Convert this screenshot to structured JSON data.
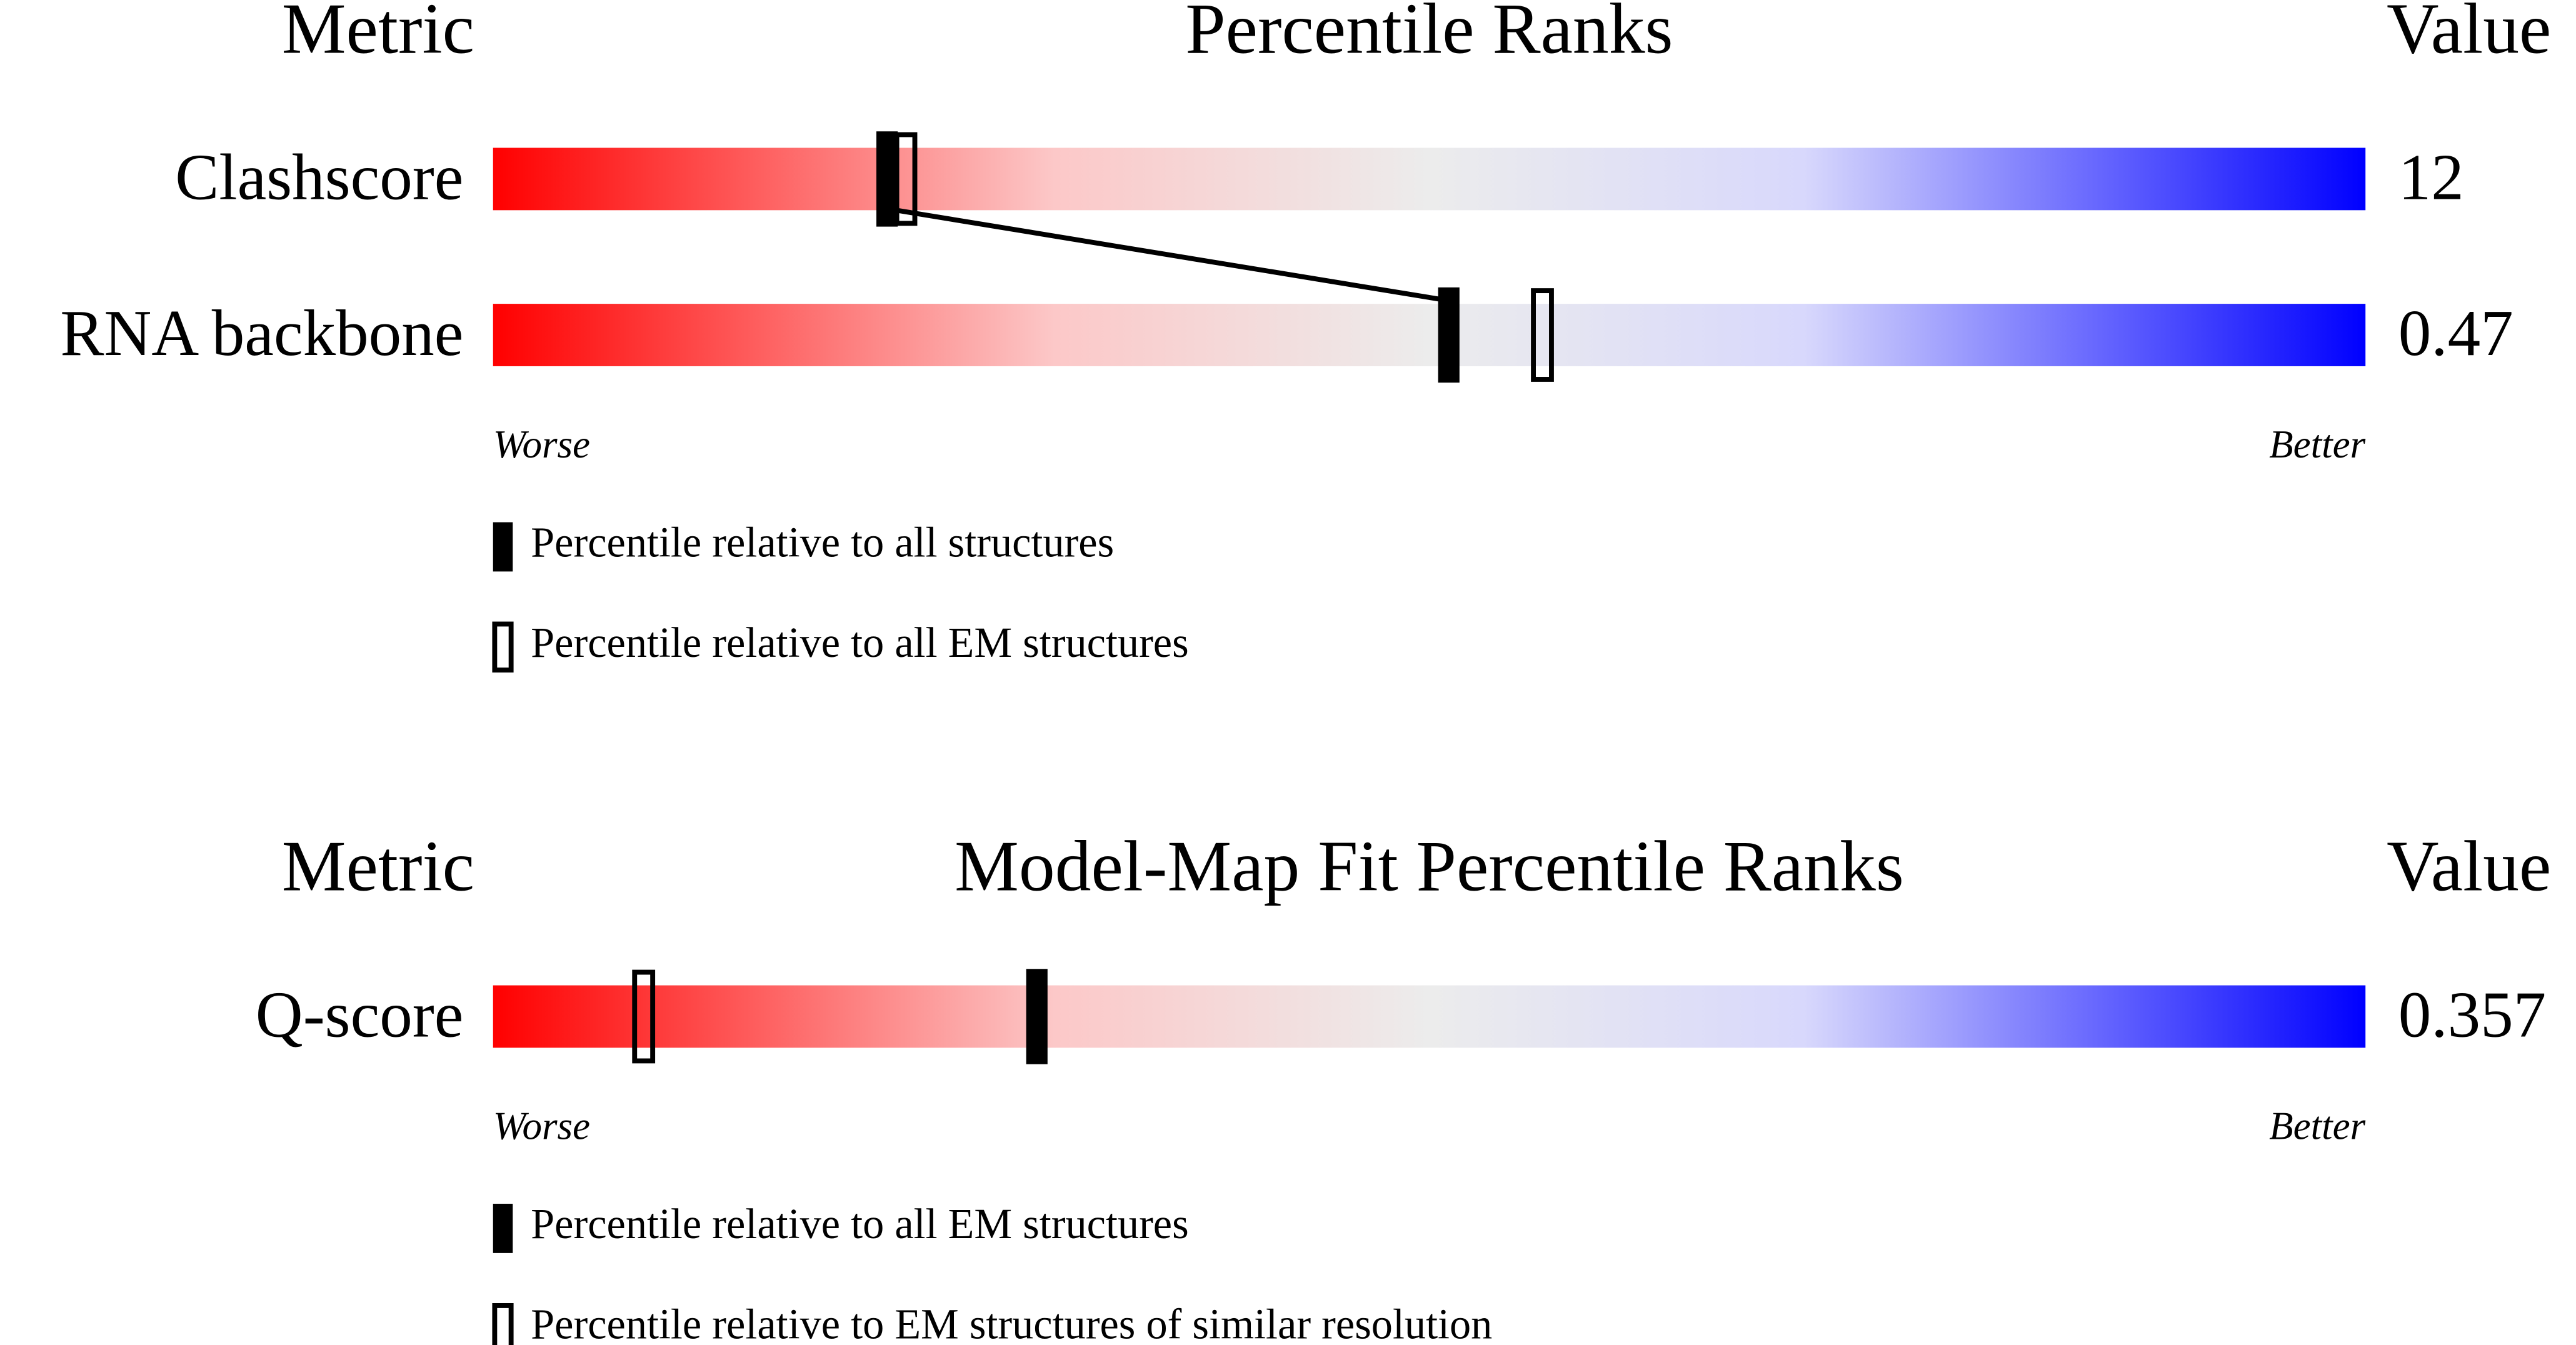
{
  "xlim": [
    0,
    100
  ],
  "panels": [
    {
      "header": {
        "metric": "Metric",
        "title": "Percentile Ranks",
        "value": "Value"
      },
      "rows": [
        {
          "label": "Clashscore",
          "value": "12",
          "percentiles": [
            21,
            22
          ]
        },
        {
          "label": "RNA backbone",
          "value": "0.47",
          "percentiles": [
            51,
            56
          ]
        }
      ],
      "scale": {
        "worse": "Worse",
        "better": "Better"
      },
      "legend": [
        "Percentile relative to all structures",
        "Percentile relative to all EM structures"
      ]
    },
    {
      "header": {
        "metric": "Metric",
        "title": "Model-Map Fit Percentile Ranks",
        "value": "Value"
      },
      "rows": [
        {
          "label": "Q-score",
          "value": "0.357",
          "percentiles": [
            29,
            8
          ]
        }
      ],
      "scale": {
        "worse": "Worse",
        "better": "Better"
      },
      "legend": [
        "Percentile relative to all EM structures",
        "Percentile relative to EM structures of similar resolution"
      ]
    }
  ]
}
